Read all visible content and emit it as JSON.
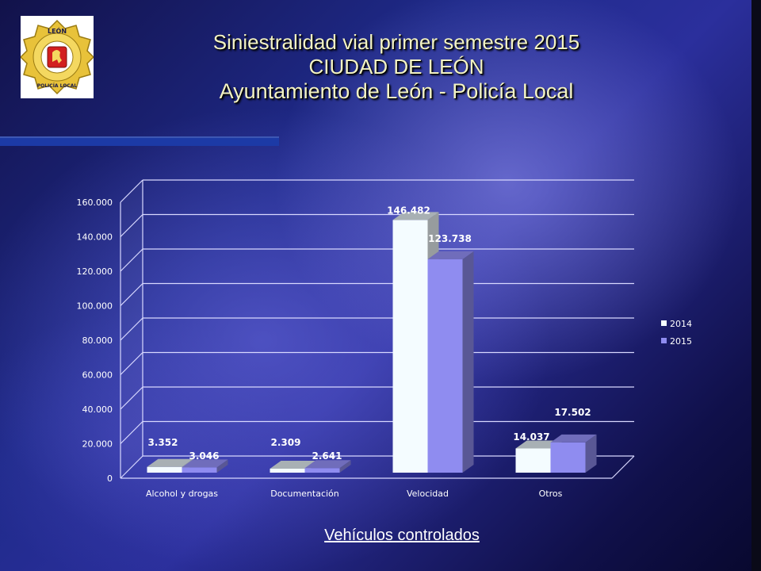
{
  "header": {
    "title_line1": "Siniestralidad vial primer semestre 2015",
    "title_line2": "CIUDAD DE LEÓN",
    "title_line3": "Ayuntamiento de León - Policía Local"
  },
  "logo": {
    "top_text": "LEÓN",
    "bottom_text": "POLICÍA LOCAL"
  },
  "colors": {
    "series_2014": "#f4fcff",
    "series_2015": "#8f8cf0",
    "accent_bar": "#1c3aa6"
  },
  "chart_data": {
    "type": "bar",
    "categories": [
      "Alcohol y drogas",
      "Documentación",
      "Velocidad",
      "Otros"
    ],
    "series": [
      {
        "name": "2014",
        "values": [
          3352,
          2309,
          146482,
          14037
        ],
        "labels": [
          "3.352",
          "2.309",
          "146.482",
          "14.037"
        ]
      },
      {
        "name": "2015",
        "values": [
          3046,
          2641,
          123738,
          17502
        ],
        "labels": [
          "3.046",
          "2.641",
          "123.738",
          "17.502"
        ]
      }
    ],
    "ylim": [
      0,
      160000
    ],
    "yticks": [
      0,
      20000,
      40000,
      60000,
      80000,
      100000,
      120000,
      140000,
      160000
    ],
    "ytick_labels": [
      "0",
      "20.000",
      "40.000",
      "60.000",
      "80.000",
      "100.000",
      "120.000",
      "140.000",
      "160.000"
    ],
    "grid": true,
    "legend_position": "right",
    "style": "3d-clustered-column"
  },
  "footer": {
    "caption": "Vehículos controlados"
  }
}
